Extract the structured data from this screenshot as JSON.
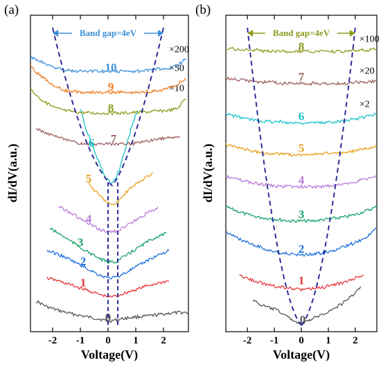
{
  "chart_data": [
    {
      "type": "line",
      "panel_label": "(a)",
      "xlabel": "Voltage(V)",
      "ylabel": "dI/dV(a.u.)",
      "xlim": [
        -2.8,
        2.9
      ],
      "x_ticks": [
        "-2",
        "-1",
        "0",
        "1",
        "2"
      ],
      "x_tick_values": [
        -2,
        -1,
        0,
        1,
        2
      ],
      "band_gap_label": "Band gap=4eV",
      "band_gap_color": "#3b8fd8",
      "band_gap_range": [
        -2,
        2
      ],
      "gap_lines": [
        0,
        0.35
      ],
      "multipliers": [
        {
          "text": "×200",
          "series": "10"
        },
        {
          "text": "×50",
          "series": "9"
        },
        {
          "text": "×10",
          "series": "8"
        }
      ],
      "series": [
        {
          "name": "0",
          "color": "#555555",
          "x": [
            -2.6,
            -2.2,
            -1.8,
            -1.4,
            -1.0,
            -0.6,
            -0.3,
            0.0,
            0.3,
            0.6,
            1.0,
            1.4,
            1.8,
            2.2,
            2.6,
            2.9
          ],
          "y": [
            0.3,
            0.22,
            0.17,
            0.13,
            0.1,
            0.07,
            0.05,
            0.02,
            0.04,
            0.06,
            0.08,
            0.09,
            0.11,
            0.13,
            0.14,
            0.14
          ]
        },
        {
          "name": "1",
          "color": "#e8383d",
          "x": [
            -2.2,
            -1.8,
            -1.4,
            -1.0,
            -0.6,
            -0.3,
            0.0,
            0.3,
            0.6,
            1.0,
            1.4,
            1.8,
            2.2
          ],
          "y": [
            0.62,
            0.58,
            0.53,
            0.48,
            0.43,
            0.39,
            0.36,
            0.37,
            0.41,
            0.46,
            0.51,
            0.55,
            0.58
          ]
        },
        {
          "name": "2",
          "color": "#1a6fdb",
          "x": [
            -2.2,
            -1.8,
            -1.4,
            -1.0,
            -0.6,
            -0.3,
            0.0,
            0.3,
            0.6,
            1.0,
            1.4,
            1.8,
            2.2
          ],
          "y": [
            1.0,
            0.95,
            0.88,
            0.8,
            0.72,
            0.66,
            0.62,
            0.63,
            0.69,
            0.77,
            0.86,
            0.94,
            1.0
          ]
        },
        {
          "name": "3",
          "color": "#1aa36a",
          "x": [
            -2.1,
            -1.7,
            -1.3,
            -0.9,
            -0.5,
            -0.2,
            0.0,
            0.3,
            0.6,
            1.0,
            1.4,
            1.8,
            2.1
          ],
          "y": [
            1.31,
            1.22,
            1.12,
            1.02,
            0.93,
            0.87,
            0.84,
            0.85,
            0.92,
            1.02,
            1.12,
            1.2,
            1.24
          ]
        },
        {
          "name": "4",
          "color": "#b87ad9",
          "x": [
            -1.8,
            -1.4,
            -1.0,
            -0.6,
            -0.3,
            0.0,
            0.3,
            0.6,
            1.0,
            1.4,
            1.8
          ],
          "y": [
            1.62,
            1.54,
            1.44,
            1.35,
            1.29,
            1.26,
            1.27,
            1.33,
            1.42,
            1.52,
            1.6
          ]
        },
        {
          "name": "5",
          "color": "#e8a01a",
          "x": [
            -0.7,
            -0.4,
            -0.1,
            0.1,
            0.3,
            0.5,
            0.7,
            1.0,
            1.3,
            1.6
          ],
          "y": [
            1.93,
            1.8,
            1.7,
            1.63,
            1.66,
            1.74,
            1.83,
            1.92,
            2.0,
            2.08
          ]
        },
        {
          "name": "6",
          "color": "#17c3c9",
          "x": [
            -1.0,
            -0.8,
            -0.5,
            -0.3,
            -0.1,
            0.1,
            0.3,
            0.5,
            0.7,
            0.9,
            1.1
          ],
          "y": [
            2.96,
            2.7,
            2.4,
            2.2,
            2.03,
            1.94,
            2.02,
            2.25,
            2.52,
            2.78,
            2.96
          ]
        },
        {
          "name": "7",
          "color": "#9b5f5f",
          "x": [
            -2.6,
            -2.2,
            -1.8,
            -1.4,
            -1.0,
            -0.6,
            -0.2,
            0.2,
            0.6,
            1.0,
            1.4,
            1.8,
            2.2,
            2.6
          ],
          "y": [
            2.69,
            2.63,
            2.57,
            2.52,
            2.49,
            2.48,
            2.48,
            2.48,
            2.48,
            2.49,
            2.52,
            2.55,
            2.57,
            2.58
          ]
        },
        {
          "name": "8",
          "color": "#8e9a1c",
          "x": [
            -2.8,
            -2.5,
            -2.2,
            -1.9,
            -1.5,
            -1.0,
            -0.5,
            0.0,
            0.5,
            1.0,
            1.5,
            1.9,
            2.2,
            2.5,
            2.8
          ],
          "y": [
            3.24,
            3.13,
            3.04,
            2.98,
            2.94,
            2.92,
            2.91,
            2.91,
            2.91,
            2.92,
            2.93,
            2.94,
            2.95,
            2.97,
            3.12
          ]
        },
        {
          "name": "9",
          "color": "#f07a1c",
          "x": [
            -2.8,
            -2.5,
            -2.2,
            -1.9,
            -1.5,
            -1.0,
            -0.5,
            0.0,
            0.5,
            1.0,
            1.5,
            1.9,
            2.2,
            2.5,
            2.8
          ],
          "y": [
            3.55,
            3.45,
            3.36,
            3.28,
            3.22,
            3.2,
            3.2,
            3.2,
            3.2,
            3.2,
            3.21,
            3.23,
            3.26,
            3.3,
            3.4
          ]
        },
        {
          "name": "10",
          "color": "#3b8fd8",
          "x": [
            -2.8,
            -2.5,
            -2.2,
            -1.8,
            -1.4,
            -1.0,
            -0.5,
            0.0,
            0.5,
            1.0,
            1.4,
            1.8,
            2.2,
            2.5,
            2.8
          ],
          "y": [
            3.68,
            3.64,
            3.58,
            3.53,
            3.5,
            3.49,
            3.49,
            3.49,
            3.49,
            3.49,
            3.5,
            3.52,
            3.54,
            3.57,
            3.66
          ]
        }
      ]
    },
    {
      "type": "line",
      "panel_label": "(b)",
      "xlabel": "Voltage(V)",
      "ylabel": "dI/dV(a.u.)",
      "xlim": [
        -2.8,
        2.8
      ],
      "x_ticks": [
        "-2",
        "-1",
        "0",
        "1",
        "2"
      ],
      "x_tick_values": [
        -2,
        -1,
        0,
        1,
        2
      ],
      "band_gap_label": "Band gap=4eV",
      "band_gap_color": "#8e9a1c",
      "band_gap_range": [
        -2,
        2
      ],
      "gap_lines": [],
      "multipliers": [
        {
          "text": "×100",
          "series": "8"
        },
        {
          "text": "×20",
          "series": "7"
        },
        {
          "text": "×2",
          "series": "6"
        }
      ],
      "series": [
        {
          "name": "0",
          "color": "#555555",
          "x": [
            -1.8,
            -1.5,
            -1.2,
            -0.9,
            -0.6,
            -0.3,
            0.0,
            0.3,
            0.6,
            0.9,
            1.2,
            1.5,
            1.8,
            2.2
          ],
          "y": [
            0.2,
            0.16,
            0.14,
            0.12,
            0.08,
            0.04,
            0.01,
            0.04,
            0.07,
            0.1,
            0.13,
            0.17,
            0.22,
            0.3
          ]
        },
        {
          "name": "1",
          "color": "#e8383d",
          "x": [
            -2.3,
            -2.0,
            -1.6,
            -1.2,
            -0.8,
            -0.4,
            0.0,
            0.4,
            0.8,
            1.2,
            1.6,
            2.0,
            2.3
          ],
          "y": [
            0.39,
            0.37,
            0.34,
            0.32,
            0.3,
            0.29,
            0.28,
            0.29,
            0.3,
            0.32,
            0.34,
            0.37,
            0.4
          ]
        },
        {
          "name": "2",
          "color": "#1a6fdb",
          "x": [
            -2.8,
            -2.4,
            -2.0,
            -1.6,
            -1.2,
            -0.8,
            -0.4,
            0.0,
            0.4,
            0.8,
            1.2,
            1.6,
            2.0,
            2.4,
            2.8
          ],
          "y": [
            0.73,
            0.69,
            0.65,
            0.62,
            0.59,
            0.57,
            0.56,
            0.55,
            0.56,
            0.57,
            0.59,
            0.62,
            0.65,
            0.69,
            0.76
          ]
        },
        {
          "name": "3",
          "color": "#1aa36a",
          "x": [
            -2.8,
            -2.4,
            -2.0,
            -1.6,
            -1.2,
            -0.8,
            -0.4,
            0.0,
            0.4,
            0.8,
            1.2,
            1.6,
            2.0,
            2.4,
            2.8
          ],
          "y": [
            0.93,
            0.9,
            0.87,
            0.85,
            0.84,
            0.83,
            0.82,
            0.82,
            0.82,
            0.83,
            0.84,
            0.85,
            0.87,
            0.9,
            0.93
          ]
        },
        {
          "name": "4",
          "color": "#b87ad9",
          "x": [
            -2.8,
            -2.4,
            -2.0,
            -1.6,
            -1.2,
            -0.8,
            -0.4,
            0.0,
            0.4,
            0.8,
            1.2,
            1.6,
            2.0,
            2.4,
            2.8
          ],
          "y": [
            1.17,
            1.15,
            1.13,
            1.11,
            1.1,
            1.09,
            1.09,
            1.09,
            1.09,
            1.09,
            1.1,
            1.11,
            1.13,
            1.15,
            1.17
          ]
        },
        {
          "name": "5",
          "color": "#e8a01a",
          "x": [
            -2.8,
            -2.4,
            -2.0,
            -1.6,
            -1.2,
            -0.8,
            -0.4,
            0.0,
            0.4,
            0.8,
            1.2,
            1.6,
            2.0,
            2.4,
            2.8
          ],
          "y": [
            1.42,
            1.4,
            1.38,
            1.36,
            1.35,
            1.35,
            1.34,
            1.34,
            1.34,
            1.35,
            1.35,
            1.36,
            1.37,
            1.39,
            1.41
          ]
        },
        {
          "name": "6",
          "color": "#17c3c9",
          "x": [
            -2.8,
            -2.4,
            -2.0,
            -1.6,
            -1.2,
            -0.8,
            -0.4,
            0.0,
            0.4,
            0.8,
            1.2,
            1.6,
            2.0,
            2.4,
            2.8
          ],
          "y": [
            1.66,
            1.64,
            1.62,
            1.61,
            1.6,
            1.6,
            1.59,
            1.59,
            1.59,
            1.59,
            1.6,
            1.61,
            1.62,
            1.64,
            1.66
          ]
        },
        {
          "name": "7",
          "color": "#9b5f5f",
          "x": [
            -2.8,
            -2.4,
            -2.0,
            -1.6,
            -1.2,
            -0.8,
            -0.4,
            0.0,
            0.4,
            0.8,
            1.2,
            1.6,
            2.0,
            2.4,
            2.8
          ],
          "y": [
            1.94,
            1.93,
            1.92,
            1.91,
            1.91,
            1.9,
            1.9,
            1.9,
            1.9,
            1.9,
            1.9,
            1.9,
            1.91,
            1.91,
            1.92
          ]
        },
        {
          "name": "8",
          "color": "#8e9a1c",
          "x": [
            -2.8,
            -2.4,
            -2.0,
            -1.6,
            -1.2,
            -0.8,
            -0.4,
            0.0,
            0.4,
            0.8,
            1.2,
            1.6,
            2.0,
            2.4,
            2.8
          ],
          "y": [
            2.17,
            2.17,
            2.16,
            2.16,
            2.15,
            2.15,
            2.15,
            2.15,
            2.15,
            2.15,
            2.15,
            2.15,
            2.16,
            2.16,
            2.17
          ]
        }
      ]
    }
  ]
}
